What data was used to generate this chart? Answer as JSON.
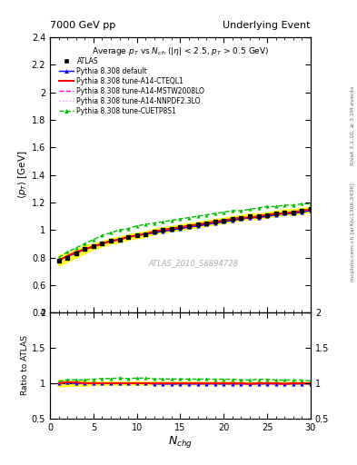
{
  "title_left": "7000 GeV pp",
  "title_right": "Underlying Event",
  "ylabel_main": "⟨p_{T}⟩ [GeV]",
  "ylabel_ratio": "Ratio to ATLAS",
  "xlabel": "N_{chg}",
  "watermark": "ATLAS_2010_S8894728",
  "right_label1": "Rivet 3.1.10, ≥ 3.1M events",
  "right_label2": "mcplots.cern.ch [arXiv:1306.3436]",
  "ylim_main": [
    0.4,
    2.4
  ],
  "ylim_ratio": [
    0.5,
    2.0
  ],
  "yticks_main": [
    0.4,
    0.6,
    0.8,
    1.0,
    1.2,
    1.4,
    1.6,
    1.8,
    2.0,
    2.2,
    2.4
  ],
  "yticks_ratio": [
    0.5,
    1.0,
    1.5,
    2.0
  ],
  "xticks": [
    0,
    5,
    10,
    15,
    20,
    25,
    30
  ],
  "xlim": [
    0,
    30
  ],
  "nch": [
    1,
    2,
    3,
    4,
    5,
    6,
    7,
    8,
    9,
    10,
    11,
    12,
    13,
    14,
    15,
    16,
    17,
    18,
    19,
    20,
    21,
    22,
    23,
    24,
    25,
    26,
    27,
    28,
    29,
    30
  ],
  "atlas_data": [
    0.78,
    0.8,
    0.83,
    0.86,
    0.88,
    0.9,
    0.92,
    0.93,
    0.95,
    0.96,
    0.97,
    0.99,
    1.0,
    1.01,
    1.02,
    1.03,
    1.04,
    1.05,
    1.06,
    1.07,
    1.08,
    1.09,
    1.1,
    1.1,
    1.11,
    1.12,
    1.13,
    1.13,
    1.14,
    1.15
  ],
  "atlas_err": [
    0.04,
    0.03,
    0.03,
    0.03,
    0.02,
    0.02,
    0.02,
    0.02,
    0.02,
    0.02,
    0.02,
    0.02,
    0.02,
    0.02,
    0.02,
    0.02,
    0.02,
    0.02,
    0.02,
    0.02,
    0.02,
    0.02,
    0.02,
    0.02,
    0.02,
    0.02,
    0.02,
    0.02,
    0.02,
    0.02
  ],
  "pythia_default": [
    0.78,
    0.81,
    0.83,
    0.86,
    0.88,
    0.9,
    0.92,
    0.93,
    0.95,
    0.96,
    0.97,
    0.98,
    0.99,
    1.0,
    1.01,
    1.02,
    1.03,
    1.04,
    1.05,
    1.06,
    1.07,
    1.08,
    1.09,
    1.09,
    1.1,
    1.11,
    1.12,
    1.12,
    1.13,
    1.14
  ],
  "pythia_cteql1": [
    0.78,
    0.81,
    0.84,
    0.86,
    0.88,
    0.9,
    0.92,
    0.93,
    0.95,
    0.96,
    0.97,
    0.99,
    1.0,
    1.01,
    1.02,
    1.03,
    1.04,
    1.05,
    1.06,
    1.07,
    1.08,
    1.09,
    1.09,
    1.1,
    1.11,
    1.12,
    1.12,
    1.13,
    1.14,
    1.15
  ],
  "pythia_mstw": [
    0.78,
    0.81,
    0.83,
    0.86,
    0.88,
    0.9,
    0.92,
    0.93,
    0.95,
    0.96,
    0.97,
    0.98,
    0.99,
    1.0,
    1.01,
    1.02,
    1.03,
    1.04,
    1.05,
    1.06,
    1.07,
    1.08,
    1.09,
    1.09,
    1.1,
    1.11,
    1.12,
    1.12,
    1.13,
    1.14
  ],
  "pythia_nnpdf": [
    0.77,
    0.8,
    0.83,
    0.85,
    0.88,
    0.9,
    0.91,
    0.93,
    0.94,
    0.96,
    0.97,
    0.98,
    0.99,
    1.0,
    1.01,
    1.02,
    1.03,
    1.04,
    1.05,
    1.06,
    1.07,
    1.07,
    1.08,
    1.09,
    1.1,
    1.1,
    1.11,
    1.12,
    1.13,
    1.14
  ],
  "pythia_cuetp8s1": [
    0.8,
    0.84,
    0.87,
    0.9,
    0.93,
    0.96,
    0.98,
    1.0,
    1.01,
    1.03,
    1.04,
    1.05,
    1.06,
    1.07,
    1.08,
    1.09,
    1.1,
    1.11,
    1.12,
    1.13,
    1.14,
    1.14,
    1.15,
    1.16,
    1.17,
    1.17,
    1.18,
    1.18,
    1.19,
    1.19
  ],
  "color_default": "#0000ff",
  "color_cteql1": "#ff0000",
  "color_mstw": "#ff00ff",
  "color_nnpdf": "#ff88ff",
  "color_cuetp8s1": "#00bb00",
  "color_atlas_err": "#ffff00"
}
